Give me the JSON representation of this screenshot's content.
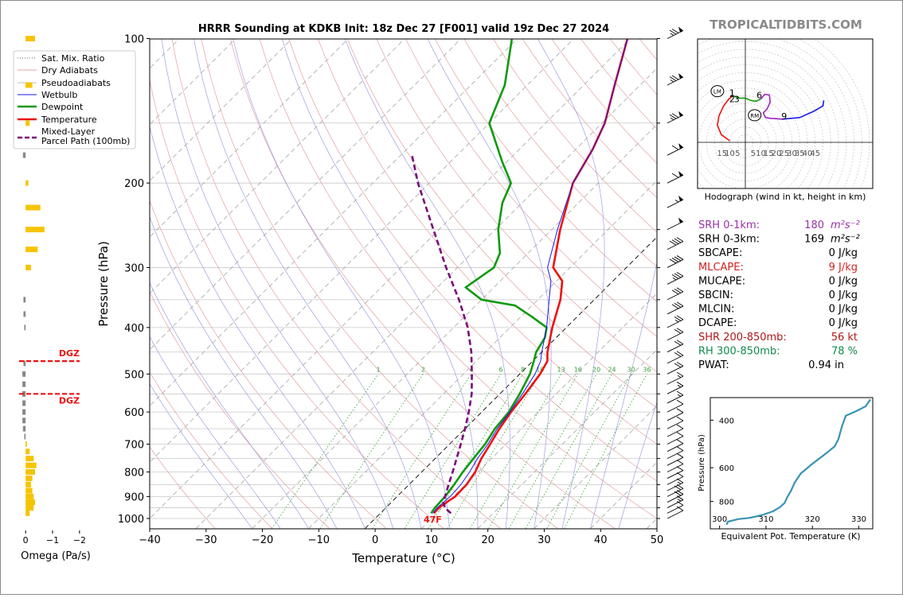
{
  "chart_data": [
    {
      "type": "skew-t",
      "title": "HRRR Sounding at KDKB Init: 18z Dec 27 [F001] valid 19z Dec 27 2024",
      "xlabel": "Temperature (°C)",
      "ylabel": "Pressure (hPa)",
      "xlim": [
        -40,
        50
      ],
      "ylim": [
        1050,
        100
      ],
      "y_scale": "log",
      "x_ticks": [
        "−40",
        "−30",
        "−20",
        "−10",
        "0",
        "10",
        "20",
        "30",
        "40",
        "50"
      ],
      "y_ticks": [
        "100",
        "200",
        "300",
        "400",
        "500",
        "600",
        "700",
        "800",
        "900",
        "1000"
      ],
      "legend": {
        "placement": "upper-left",
        "entries": [
          "Sat. Mix. Ratio",
          "Dry Adiabats",
          "Pseudoadiabats",
          "Wetbulb",
          "Dewpoint",
          "Temperature",
          "Mixed-Layer\nParcel Path (100mb)"
        ]
      },
      "mixing_ratio_labels": [
        "1",
        "2",
        "4",
        "6",
        "8",
        "10",
        "13",
        "16",
        "20",
        "24",
        "30",
        "36"
      ],
      "surface_label": "47F",
      "series": [
        {
          "name": "Temperature",
          "color": "#ee1111",
          "points": [
            [
              975,
              9.5
            ],
            [
              950,
              9.4
            ],
            [
              925,
              9.8
            ],
            [
              900,
              10.3
            ],
            [
              850,
              10.2
            ],
            [
              800,
              9.5
            ],
            [
              750,
              8.2
            ],
            [
              700,
              7.2
            ],
            [
              650,
              6.1
            ],
            [
              600,
              5.2
            ],
            [
              550,
              4.5
            ],
            [
              500,
              3.6
            ],
            [
              470,
              2.6
            ],
            [
              450,
              1.0
            ],
            [
              400,
              -2.5
            ],
            [
              350,
              -6.0
            ],
            [
              320,
              -9.0
            ],
            [
              300,
              -13.0
            ],
            [
              250,
              -18.5
            ],
            [
              200,
              -24.5
            ],
            [
              170,
              -27.0
            ],
            [
              150,
              -29.5
            ],
            [
              125,
              -34.5
            ],
            [
              100,
              -40.5
            ]
          ]
        },
        {
          "name": "Dewpoint",
          "color": "#0e9a0e",
          "points": [
            [
              975,
              9.0
            ],
            [
              950,
              8.7
            ],
            [
              900,
              8.5
            ],
            [
              850,
              8.0
            ],
            [
              800,
              7.3
            ],
            [
              750,
              6.8
            ],
            [
              700,
              6.3
            ],
            [
              650,
              5.3
            ],
            [
              600,
              4.8
            ],
            [
              550,
              3.5
            ],
            [
              500,
              1.8
            ],
            [
              470,
              0.2
            ],
            [
              450,
              -1.0
            ],
            [
              420,
              -2.0
            ],
            [
              400,
              -3.5
            ],
            [
              380,
              -8.0
            ],
            [
              360,
              -13.0
            ],
            [
              350,
              -20.0
            ],
            [
              330,
              -25.0
            ],
            [
              300,
              -23.5
            ],
            [
              280,
              -25.0
            ],
            [
              250,
              -29.5
            ],
            [
              220,
              -33.5
            ],
            [
              200,
              -35.5
            ],
            [
              180,
              -41.0
            ],
            [
              150,
              -50.0
            ],
            [
              125,
              -54.0
            ],
            [
              100,
              -61.0
            ]
          ]
        },
        {
          "name": "Wetbulb",
          "color": "#1a1aee",
          "points": [
            [
              975,
              9.3
            ],
            [
              950,
              9.1
            ],
            [
              900,
              9.4
            ],
            [
              850,
              9.2
            ],
            [
              800,
              8.5
            ],
            [
              750,
              7.5
            ],
            [
              700,
              6.8
            ],
            [
              650,
              5.7
            ],
            [
              600,
              5.0
            ],
            [
              550,
              4.0
            ],
            [
              500,
              2.7
            ],
            [
              470,
              1.4
            ],
            [
              450,
              0.0
            ],
            [
              400,
              -3.5
            ],
            [
              350,
              -8.0
            ],
            [
              320,
              -11.0
            ],
            [
              300,
              -14.0
            ],
            [
              250,
              -19.0
            ],
            [
              200,
              -24.5
            ],
            [
              170,
              -27.0
            ],
            [
              150,
              -29.5
            ],
            [
              125,
              -34.5
            ],
            [
              100,
              -40.5
            ]
          ]
        },
        {
          "name": "Mixed-Layer Parcel Path (100mb)",
          "color": "#7a0a7a",
          "points": [
            [
              975,
              12.5
            ],
            [
              950,
              10.5
            ],
            [
              925,
              9.2
            ],
            [
              900,
              8.5
            ],
            [
              850,
              7.0
            ],
            [
              800,
              5.5
            ],
            [
              750,
              3.8
            ],
            [
              700,
              2.0
            ],
            [
              650,
              0.0
            ],
            [
              600,
              -2.3
            ],
            [
              550,
              -5.0
            ],
            [
              500,
              -8.5
            ],
            [
              450,
              -12.5
            ],
            [
              400,
              -17.5
            ],
            [
              350,
              -24.0
            ],
            [
              300,
              -32.0
            ],
            [
              250,
              -41.0
            ],
            [
              200,
              -52.0
            ],
            [
              175,
              -58.0
            ]
          ]
        }
      ],
      "wind_barbs": [
        {
          "p": 100,
          "kt": 75
        },
        {
          "p": 125,
          "kt": 75
        },
        {
          "p": 150,
          "kt": 75
        },
        {
          "p": 175,
          "kt": 60
        },
        {
          "p": 200,
          "kt": 60
        },
        {
          "p": 225,
          "kt": 55
        },
        {
          "p": 250,
          "kt": 50
        },
        {
          "p": 275,
          "kt": 40
        },
        {
          "p": 300,
          "kt": 40
        },
        {
          "p": 325,
          "kt": 35
        },
        {
          "p": 350,
          "kt": 30
        },
        {
          "p": 375,
          "kt": 30
        },
        {
          "p": 400,
          "kt": 25
        },
        {
          "p": 425,
          "kt": 20
        },
        {
          "p": 450,
          "kt": 20
        },
        {
          "p": 475,
          "kt": 20
        },
        {
          "p": 500,
          "kt": 20
        },
        {
          "p": 525,
          "kt": 15
        },
        {
          "p": 550,
          "kt": 15
        },
        {
          "p": 575,
          "kt": 15
        },
        {
          "p": 600,
          "kt": 10
        },
        {
          "p": 625,
          "kt": 10
        },
        {
          "p": 650,
          "kt": 10
        },
        {
          "p": 675,
          "kt": 10
        },
        {
          "p": 700,
          "kt": 10
        },
        {
          "p": 725,
          "kt": 10
        },
        {
          "p": 750,
          "kt": 10
        },
        {
          "p": 775,
          "kt": 10
        },
        {
          "p": 800,
          "kt": 10
        },
        {
          "p": 825,
          "kt": 10
        },
        {
          "p": 850,
          "kt": 10
        },
        {
          "p": 875,
          "kt": 15
        },
        {
          "p": 900,
          "kt": 20
        },
        {
          "p": 925,
          "kt": 20
        },
        {
          "p": 950,
          "kt": 15
        },
        {
          "p": 975,
          "kt": 10
        },
        {
          "p": 1000,
          "kt": 10
        }
      ]
    },
    {
      "type": "bar",
      "xlabel": "Omega (Pa/s)",
      "x_ticks": [
        "0",
        "−1",
        "−2"
      ],
      "xlim": [
        0.3,
        -2.3
      ],
      "color": "#f5c400",
      "dgz_label": "DGZ",
      "dgz_pressures": [
        470,
        550
      ],
      "bars": [
        {
          "p": 100,
          "v": -0.35
        },
        {
          "p": 125,
          "v": -0.25
        },
        {
          "p": 150,
          "v": -0.15
        },
        {
          "p": 175,
          "v": 0.1
        },
        {
          "p": 200,
          "v": -0.1
        },
        {
          "p": 225,
          "v": -0.55
        },
        {
          "p": 250,
          "v": -0.7
        },
        {
          "p": 275,
          "v": -0.45
        },
        {
          "p": 300,
          "v": -0.2
        },
        {
          "p": 350,
          "v": 0.08
        },
        {
          "p": 375,
          "v": 0.08
        },
        {
          "p": 400,
          "v": 0.05
        },
        {
          "p": 475,
          "v": 0.08
        },
        {
          "p": 500,
          "v": 0.12
        },
        {
          "p": 525,
          "v": 0.12
        },
        {
          "p": 550,
          "v": 0.12
        },
        {
          "p": 575,
          "v": 0.12
        },
        {
          "p": 600,
          "v": 0.12
        },
        {
          "p": 625,
          "v": 0.12
        },
        {
          "p": 650,
          "v": 0.1
        },
        {
          "p": 675,
          "v": 0.05
        },
        {
          "p": 700,
          "v": -0.05
        },
        {
          "p": 725,
          "v": -0.15
        },
        {
          "p": 750,
          "v": -0.3
        },
        {
          "p": 775,
          "v": -0.4
        },
        {
          "p": 800,
          "v": -0.35
        },
        {
          "p": 825,
          "v": -0.25
        },
        {
          "p": 850,
          "v": -0.2
        },
        {
          "p": 875,
          "v": -0.25
        },
        {
          "p": 900,
          "v": -0.3
        },
        {
          "p": 925,
          "v": -0.35
        },
        {
          "p": 950,
          "v": -0.3
        },
        {
          "p": 975,
          "v": -0.15
        }
      ]
    },
    {
      "type": "line",
      "title": "Hodograph (wind in kt, height in km)",
      "x_ticks": [
        "15",
        "10",
        "5",
        "5",
        "10",
        "15",
        "20",
        "25",
        "30",
        "35",
        "40",
        "45"
      ],
      "xlim": [
        -20,
        55
      ],
      "ylim": [
        -20,
        45
      ],
      "lm_label": "LM",
      "rm_label": "RM",
      "height_labels": [
        {
          "text": "1",
          "u": -8.5,
          "v": 30.0
        },
        {
          "text": "2",
          "u": -8.5,
          "v": 26.0
        },
        {
          "text": "3",
          "u": -5.5,
          "v": 26.0
        },
        {
          "text": "6",
          "u": 9.0,
          "v": 28.5
        },
        {
          "text": "9",
          "u": 25.0,
          "v": 15.0
        }
      ],
      "lm": {
        "u": -18.0,
        "v": 33.0
      },
      "rm": {
        "u": 6.0,
        "v": 17.5
      },
      "segments": [
        {
          "color": "#ee1111",
          "points": [
            [
              -10.0,
              1.0
            ],
            [
              -15.5,
              5.0
            ],
            [
              -18.0,
              11.0
            ],
            [
              -17.0,
              17.0
            ],
            [
              -14.0,
              23.5
            ],
            [
              -10.5,
              28.0
            ],
            [
              -8.0,
              30.0
            ]
          ]
        },
        {
          "color": "#0e9a0e",
          "points": [
            [
              -8.0,
              30.0
            ],
            [
              -4.0,
              28.5
            ],
            [
              0.0,
              28.5
            ],
            [
              3.5,
              27.0
            ],
            [
              7.0,
              26.5
            ],
            [
              10.0,
              28.0
            ]
          ]
        },
        {
          "color": "#a020c0",
          "points": [
            [
              10.0,
              28.0
            ],
            [
              12.5,
              31.0
            ],
            [
              15.5,
              30.5
            ],
            [
              16.0,
              26.0
            ],
            [
              14.0,
              21.5
            ],
            [
              11.5,
              19.0
            ],
            [
              13.0,
              16.0
            ],
            [
              16.0,
              15.5
            ],
            [
              24.0,
              15.0
            ]
          ]
        },
        {
          "color": "#1a1aee",
          "points": [
            [
              24.0,
              15.0
            ],
            [
              35.0,
              16.0
            ],
            [
              44.0,
              20.0
            ],
            [
              50.0,
              23.5
            ],
            [
              50.5,
              27.0
            ]
          ]
        }
      ]
    },
    {
      "type": "line",
      "xlabel": "Equivalent Pot. Temperature (K)",
      "ylabel": "Pressure (hPa)",
      "x_ticks": [
        "300",
        "310",
        "320",
        "330"
      ],
      "y_ticks": [
        "400",
        "600",
        "800"
      ],
      "xlim": [
        298,
        333
      ],
      "ylim": [
        1010,
        330
      ],
      "color": "#3893b4",
      "points": [
        [
          301.5,
          975
        ],
        [
          301.8,
          950
        ],
        [
          304.0,
          930
        ],
        [
          306.5,
          920
        ],
        [
          309.0,
          900
        ],
        [
          311.5,
          870
        ],
        [
          313.0,
          840
        ],
        [
          314.0,
          810
        ],
        [
          314.6,
          770
        ],
        [
          315.4,
          730
        ],
        [
          316.2,
          680
        ],
        [
          317.5,
          630
        ],
        [
          320.0,
          580
        ],
        [
          323.0,
          530
        ],
        [
          324.8,
          500
        ],
        [
          325.6,
          470
        ],
        [
          326.4,
          420
        ],
        [
          327.2,
          385
        ],
        [
          329.5,
          370
        ],
        [
          331.5,
          355
        ],
        [
          332.5,
          335
        ]
      ]
    }
  ],
  "header": {
    "site": "TROPICALTIDBITS.COM"
  },
  "indices": [
    {
      "label": "SRH 0-1km:",
      "value": "180",
      "unit": "m²s⁻²",
      "color": "#9b30a8"
    },
    {
      "label": "SRH 0-3km:",
      "value": "169",
      "unit": "m²s⁻²",
      "color": "#000000"
    },
    {
      "label": "SBCAPE:",
      "value": "0 J/kg",
      "color": "#000000"
    },
    {
      "label": "MLCAPE:",
      "value": "9 J/kg",
      "color": "#d42020"
    },
    {
      "label": "MUCAPE:",
      "value": "0 J/kg",
      "color": "#000000"
    },
    {
      "label": "SBCIN:",
      "value": "0 J/kg",
      "color": "#000000"
    },
    {
      "label": "MLCIN:",
      "value": "0 J/kg",
      "color": "#000000"
    },
    {
      "label": "DCAPE:",
      "value": "0 J/kg",
      "color": "#000000"
    },
    {
      "label": "SHR 200-850mb:",
      "value": "56 kt",
      "color": "#b01818"
    },
    {
      "label": "RH 300-850mb:",
      "value": "78 %",
      "color": "#108a4e"
    },
    {
      "label": "PWAT:",
      "value": "0.94 in",
      "color": "#000000"
    }
  ]
}
